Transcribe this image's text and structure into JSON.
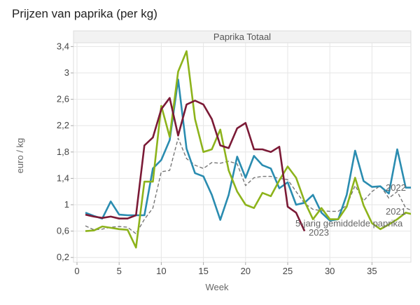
{
  "title": "Prijzen van paprika (per kg)",
  "chart_data": {
    "type": "line",
    "title": "Prijzen van paprika (per kg)",
    "panel_title": "Paprika Totaal",
    "xlabel": "Week",
    "ylabel": "euro / kg",
    "xlim": [
      0,
      39.7
    ],
    "ylim": [
      0.15,
      3.5
    ],
    "x_ticks": [
      0,
      5,
      10,
      15,
      20,
      25,
      30,
      35
    ],
    "x_tick_labels": [
      "0",
      "5",
      "10",
      "15",
      "20",
      "25",
      "30",
      "35"
    ],
    "y_ticks": [
      0.2,
      0.6,
      1.0,
      1.4,
      1.8,
      2.2,
      2.6,
      3.0,
      3.4
    ],
    "y_tick_labels": [
      "0,2",
      "0,6",
      "1",
      "1,4",
      "1,8",
      "2,2",
      "2,6",
      "3",
      "3,4"
    ],
    "grid": true,
    "legend": "inline-labels",
    "series": [
      {
        "name": "2022",
        "color": "#2a8cb0",
        "dash": false,
        "x": [
          1,
          2,
          3,
          4,
          5,
          6,
          7,
          8,
          9,
          10,
          11,
          12,
          13,
          14,
          15,
          16,
          17,
          18,
          19,
          20,
          21,
          22,
          23,
          24,
          25,
          26,
          27,
          28,
          29,
          30,
          31,
          32,
          33,
          34,
          35,
          36,
          37,
          38,
          39,
          40
        ],
        "values": [
          0.88,
          0.83,
          0.79,
          1.05,
          0.85,
          0.84,
          0.84,
          0.84,
          1.55,
          1.68,
          1.98,
          2.9,
          1.85,
          1.48,
          1.43,
          1.15,
          0.77,
          1.15,
          1.73,
          1.41,
          1.74,
          1.6,
          1.55,
          1.25,
          1.34,
          1.0,
          1.03,
          1.15,
          0.88,
          0.76,
          0.78,
          1.15,
          1.82,
          1.36,
          1.27,
          1.28,
          1.17,
          1.84,
          1.26,
          1.26
        ]
      },
      {
        "name": "2021",
        "color": "#8db31b",
        "dash": false,
        "x": [
          1,
          2,
          3,
          4,
          5,
          6,
          7,
          8,
          9,
          10,
          11,
          12,
          13,
          14,
          15,
          16,
          17,
          18,
          19,
          20,
          21,
          22,
          23,
          24,
          25,
          26,
          27,
          28,
          29,
          30,
          31,
          32,
          33,
          34,
          35,
          36,
          37,
          38,
          39,
          40
        ],
        "values": [
          0.6,
          0.61,
          0.67,
          0.65,
          0.63,
          0.62,
          0.35,
          1.35,
          1.35,
          2.5,
          2.03,
          3.02,
          3.33,
          2.3,
          1.8,
          1.84,
          2.14,
          1.52,
          1.2,
          1.0,
          0.95,
          1.18,
          1.13,
          1.37,
          1.58,
          1.41,
          1.05,
          0.78,
          0.95,
          0.78,
          0.78,
          0.97,
          1.41,
          0.99,
          0.72,
          0.63,
          0.7,
          0.78,
          0.88,
          0.85
        ]
      },
      {
        "name": "2023",
        "color": "#7b1a36",
        "dash": false,
        "x": [
          1,
          2,
          3,
          4,
          5,
          6,
          7,
          8,
          9,
          10,
          11,
          12,
          13,
          14,
          15,
          16,
          17,
          18,
          19,
          20,
          21,
          22,
          23,
          24,
          25,
          26,
          27
        ],
        "values": [
          0.85,
          0.82,
          0.8,
          0.82,
          0.79,
          0.79,
          0.84,
          1.9,
          2.02,
          2.45,
          2.62,
          2.05,
          2.52,
          2.58,
          2.52,
          2.3,
          1.9,
          1.86,
          2.16,
          2.24,
          1.84,
          1.84,
          1.8,
          1.88,
          0.97,
          0.88,
          0.6
        ]
      },
      {
        "name": "5-jarig gemiddelde paprika",
        "color": "#777777",
        "dash": true,
        "x": [
          1,
          2,
          3,
          4,
          5,
          6,
          7,
          8,
          9,
          10,
          11,
          12,
          13,
          14,
          15,
          16,
          17,
          18,
          19,
          20,
          21,
          22,
          23,
          24,
          25,
          26,
          27,
          28,
          29,
          30,
          31,
          32,
          33,
          34,
          35,
          36,
          37,
          38,
          39,
          40
        ],
        "values": [
          0.68,
          0.62,
          0.63,
          0.66,
          0.67,
          0.66,
          0.56,
          0.78,
          0.95,
          1.5,
          1.52,
          2.01,
          1.7,
          1.6,
          1.55,
          1.64,
          1.63,
          1.66,
          1.62,
          1.29,
          1.41,
          1.43,
          1.43,
          1.4,
          1.38,
          1.2,
          1.02,
          0.93,
          0.91,
          0.9,
          0.9,
          0.99,
          1.29,
          1.06,
          1.2,
          1.29,
          1.1,
          1.2,
          0.95,
          0.9
        ]
      }
    ],
    "series_labels": [
      "2022",
      "2021",
      "5-jarig gemiddelde paprika",
      "2023"
    ]
  }
}
